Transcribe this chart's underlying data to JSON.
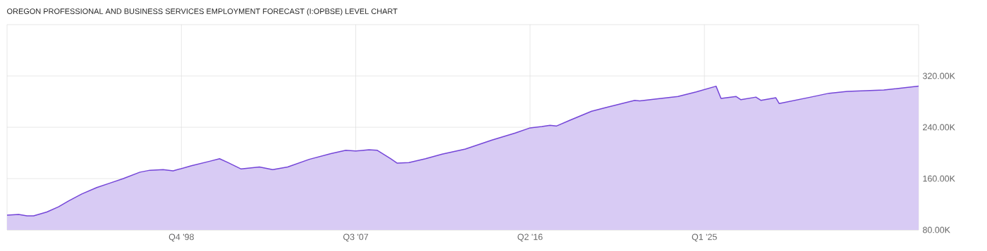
{
  "chart_data": {
    "type": "area",
    "title": "OREGON PROFESSIONAL AND BUSINESS SERVICES EMPLOYMENT FORECAST (I:OPBSE) LEVEL CHART",
    "x": [
      "1990-01",
      "1990-08",
      "1991-01",
      "1991-05",
      "1992-01",
      "1992-08",
      "1993-02",
      "1993-10",
      "1994-07",
      "1995-03",
      "1995-11",
      "1996-09",
      "1997-03",
      "1997-11",
      "1998-05",
      "1999-04",
      "2000-03",
      "2000-09",
      "2001-02",
      "2001-10",
      "2002-09",
      "2003-05",
      "2004-02",
      "2005-03",
      "2006-04",
      "2007-01",
      "2007-07",
      "2008-03",
      "2008-08",
      "2009-04",
      "2009-08",
      "2010-03",
      "2011-01",
      "2011-11",
      "2013-01",
      "2014-05",
      "2015-07",
      "2016-04",
      "2016-11",
      "2017-04",
      "2017-08",
      "2018-04",
      "2019-05",
      "2020-02",
      "2021-07",
      "2021-10",
      "2022-08",
      "2023-09",
      "2024-08",
      "2025-08",
      "2025-11",
      "2026-08",
      "2026-11",
      "2027-08",
      "2027-11",
      "2028-08",
      "2028-10",
      "2030-05",
      "2031-04",
      "2032-03",
      "2034-01",
      "2035-10"
    ],
    "series": [
      {
        "color": "#7445d8",
        "values": [
          103000,
          104000,
          102000,
          102000,
          108000,
          116000,
          125000,
          136000,
          146000,
          153000,
          160000,
          170000,
          173000,
          174000,
          172000,
          180000,
          187000,
          191000,
          185000,
          175000,
          178000,
          174000,
          178000,
          190000,
          199000,
          204000,
          203000,
          205000,
          204000,
          191000,
          184000,
          185000,
          191000,
          198000,
          206000,
          220000,
          231000,
          239000,
          241000,
          243000,
          242000,
          251000,
          265000,
          271000,
          282000,
          281000,
          284000,
          288000,
          295000,
          304000,
          285000,
          288000,
          283000,
          287000,
          282000,
          286000,
          277000,
          287000,
          293000,
          296000,
          298000,
          304000
        ]
      }
    ],
    "xlim": [
      "1990-01",
      "2035-10"
    ],
    "xticks": [
      {
        "value": "1998-10",
        "label": "Q4 '98"
      },
      {
        "value": "2007-07",
        "label": "Q3 '07"
      },
      {
        "value": "2016-04",
        "label": "Q2 '16"
      },
      {
        "value": "2025-01",
        "label": "Q1 '25"
      }
    ],
    "ylim": [
      80000,
      400000
    ],
    "yticks": [
      {
        "value": 80000,
        "label": "80.00K"
      },
      {
        "value": 160000,
        "label": "160.00K"
      },
      {
        "value": 240000,
        "label": "240.00K"
      },
      {
        "value": 320000,
        "label": "320.00K"
      }
    ],
    "grid": true
  }
}
